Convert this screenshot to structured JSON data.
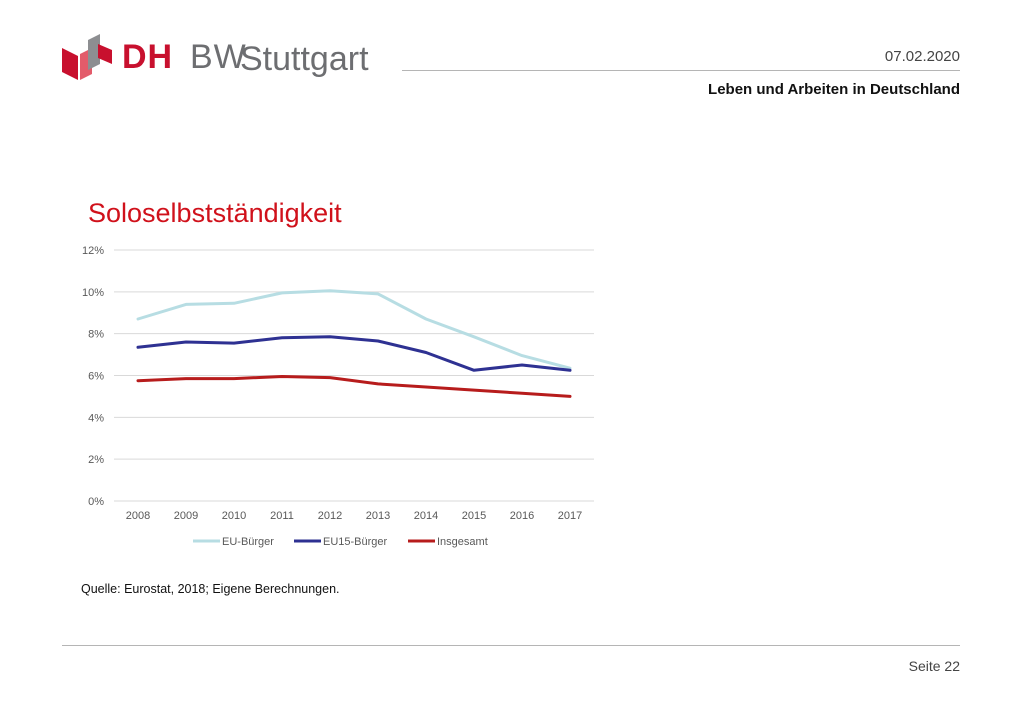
{
  "header": {
    "logo_part1": "DH",
    "logo_part2": "BW",
    "logo_city": "Stuttgart",
    "date": "07.02.2020",
    "subtitle": "Leben und Arbeiten in Deutschland"
  },
  "slide": {
    "title": "Soloselbstständigkeit",
    "source": "Quelle: Eurostat, 2018; Eigene Berechnungen.",
    "page_label": "Seite 22"
  },
  "colors": {
    "brand_red": "#c8102e",
    "brand_gray": "#6d6e71",
    "title_red": "#d0111b"
  },
  "chart_data": {
    "type": "line",
    "title": "",
    "xlabel": "",
    "ylabel": "",
    "x": [
      "2008",
      "2009",
      "2010",
      "2011",
      "2012",
      "2013",
      "2014",
      "2015",
      "2016",
      "2017"
    ],
    "ylim": [
      0,
      12
    ],
    "yticks": [
      0,
      2,
      4,
      6,
      8,
      10,
      12
    ],
    "ytick_labels": [
      "0%",
      "2%",
      "4%",
      "6%",
      "8%",
      "10%",
      "12%"
    ],
    "grid": true,
    "legend_position": "bottom",
    "series": [
      {
        "name": "EU-Bürger",
        "color": "#b7dde3",
        "values": [
          8.7,
          9.4,
          9.45,
          9.95,
          10.05,
          9.9,
          8.7,
          7.85,
          6.95,
          6.35
        ]
      },
      {
        "name": "EU15-Bürger",
        "color": "#2e3192",
        "values": [
          7.35,
          7.6,
          7.55,
          7.8,
          7.85,
          7.65,
          7.1,
          6.25,
          6.5,
          6.25
        ]
      },
      {
        "name": "Insgesamt",
        "color": "#b71c1c",
        "values": [
          5.75,
          5.85,
          5.85,
          5.95,
          5.9,
          5.6,
          5.45,
          5.3,
          5.15,
          5.0
        ]
      }
    ]
  }
}
